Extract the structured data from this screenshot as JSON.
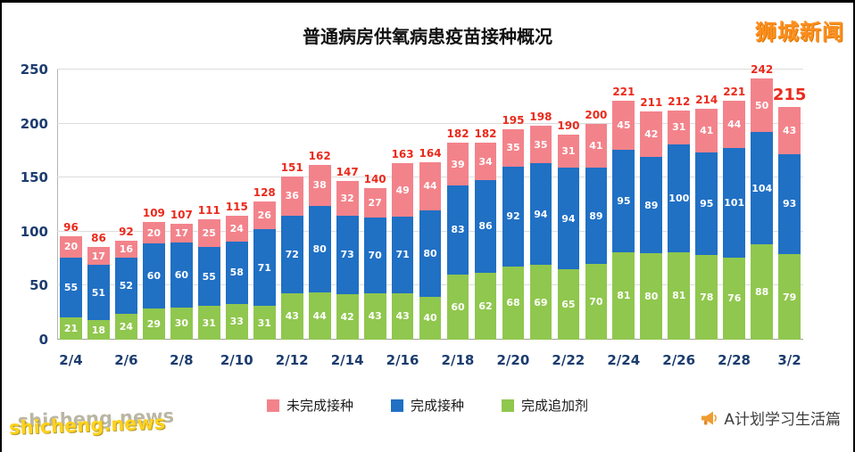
{
  "branding": {
    "site_name": "狮城新闻",
    "watermark": "shicheng.news",
    "footer_account": "A计划学习生活篇"
  },
  "chart_data": {
    "type": "bar",
    "stacked": true,
    "title": "普通病房供氧病患疫苗接种概况",
    "xlabel": "",
    "ylabel": "",
    "ylim": [
      0,
      250
    ],
    "yticks": [
      0,
      50,
      100,
      150,
      200,
      250
    ],
    "grid": true,
    "legend_position": "bottom",
    "x": [
      "2/4",
      "2/5",
      "2/6",
      "2/7",
      "2/8",
      "2/9",
      "2/10",
      "2/11",
      "2/12",
      "2/13",
      "2/14",
      "2/15",
      "2/16",
      "2/17",
      "2/18",
      "2/19",
      "2/20",
      "2/21",
      "2/22",
      "2/23",
      "2/24",
      "2/25",
      "2/26",
      "2/27",
      "2/28",
      "3/1",
      "3/2"
    ],
    "x_tick_labels": [
      "2/4",
      "2/6",
      "2/8",
      "2/10",
      "2/12",
      "2/14",
      "2/16",
      "2/18",
      "2/20",
      "2/22",
      "2/24",
      "2/26",
      "2/28",
      "3/2"
    ],
    "series": [
      {
        "name": "完成追加剂",
        "color": "#90c74e",
        "values": [
          21,
          18,
          24,
          29,
          30,
          31,
          33,
          31,
          43,
          44,
          42,
          43,
          43,
          40,
          60,
          62,
          68,
          69,
          65,
          70,
          81,
          80,
          81,
          78,
          76,
          88,
          79
        ]
      },
      {
        "name": "完成接种",
        "color": "#2070c4",
        "values": [
          55,
          51,
          52,
          60,
          60,
          55,
          58,
          71,
          72,
          80,
          73,
          70,
          71,
          80,
          83,
          86,
          92,
          94,
          94,
          89,
          95,
          89,
          100,
          95,
          101,
          104,
          93
        ]
      },
      {
        "name": "未完成接种",
        "color": "#f3838b",
        "values": [
          20,
          17,
          16,
          20,
          17,
          25,
          24,
          26,
          36,
          38,
          32,
          27,
          49,
          44,
          39,
          34,
          35,
          35,
          31,
          41,
          45,
          42,
          31,
          41,
          44,
          50,
          43
        ]
      }
    ],
    "totals": [
      96,
      86,
      92,
      109,
      107,
      111,
      115,
      128,
      151,
      162,
      147,
      140,
      163,
      164,
      182,
      182,
      195,
      198,
      190,
      200,
      221,
      211,
      212,
      214,
      221,
      242,
      215
    ],
    "total_label_color": "#ea2a1c",
    "last_total_emphasized": true,
    "legend": [
      {
        "label": "未完成接种",
        "color": "#f3838b"
      },
      {
        "label": "完成接种",
        "color": "#2070c4"
      },
      {
        "label": "完成追加剂",
        "color": "#90c74e"
      }
    ]
  }
}
